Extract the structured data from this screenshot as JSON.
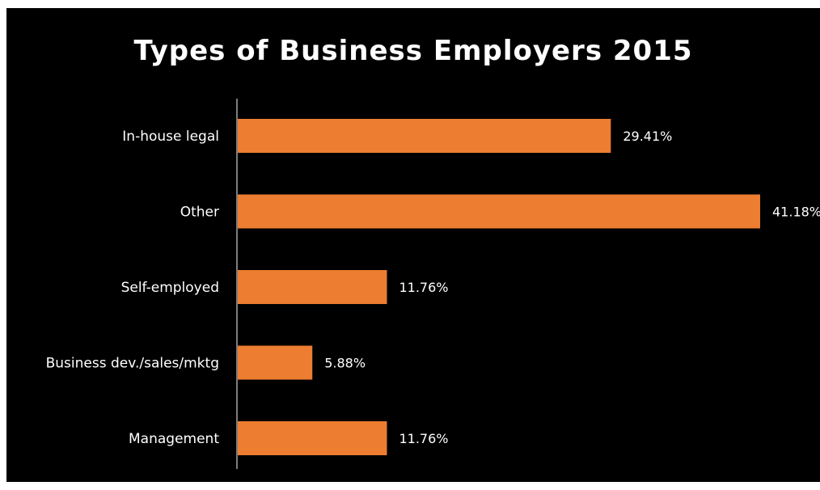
{
  "chart_data": {
    "type": "bar",
    "orientation": "horizontal",
    "title": "Types of Business Employers 2015",
    "xlabel": "",
    "ylabel": "",
    "categories": [
      "In-house legal",
      "Other",
      "Self-employed",
      "Business dev./sales/mktg",
      "Management"
    ],
    "values": [
      29.41,
      41.18,
      11.76,
      5.88,
      11.76
    ],
    "value_labels": [
      "29.41%",
      "41.18%",
      "11.76%",
      "5.88%",
      "11.76%"
    ],
    "xlim": [
      0,
      41.18
    ],
    "grid": false,
    "legend": "none"
  },
  "colors": {
    "background": "#000000",
    "bar": "#ED7D31",
    "axis": "#A6A6A6",
    "text": "#FFFFFF"
  }
}
